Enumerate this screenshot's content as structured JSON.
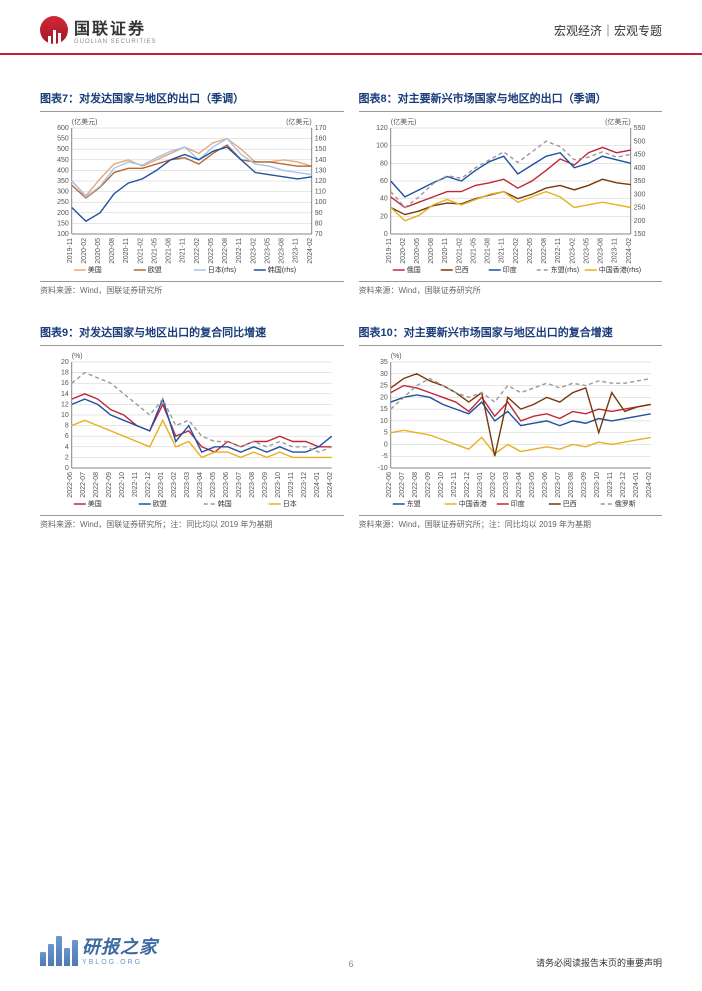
{
  "header": {
    "logo_cn": "国联证券",
    "logo_en": "GUOLIAN SECURITIES",
    "right_text": "宏观经济｜宏观专题"
  },
  "charts": [
    {
      "id": "chart7",
      "title": "图表7：对发达国家与地区的出口（季调）",
      "left_label": "(亿美元)",
      "right_label": "(亿美元)",
      "source": "资料来源：Wind，国联证券研究所",
      "left_axis": {
        "min": 100,
        "max": 600,
        "step": 50
      },
      "right_axis": {
        "min": 70,
        "max": 170,
        "step": 10
      },
      "x_ticks": [
        "2019-11",
        "2020-02",
        "2020-05",
        "2020-08",
        "2020-11",
        "2021-02",
        "2021-05",
        "2021-08",
        "2021-11",
        "2022-02",
        "2022-05",
        "2022-08",
        "2022-11",
        "2023-02",
        "2023-05",
        "2023-08",
        "2023-11",
        "2024-02"
      ],
      "series": [
        {
          "name": "美国",
          "color": "#e8a878",
          "dash": "",
          "axis": "left",
          "data": [
            350,
            280,
            360,
            430,
            450,
            420,
            450,
            480,
            510,
            480,
            530,
            550,
            500,
            440,
            440,
            450,
            440,
            420
          ]
        },
        {
          "name": "欧盟",
          "color": "#b56838",
          "dash": "",
          "axis": "left",
          "data": [
            330,
            270,
            320,
            390,
            410,
            410,
            430,
            450,
            460,
            430,
            480,
            520,
            450,
            440,
            440,
            430,
            420,
            420
          ]
        },
        {
          "name": "日本(rhs)",
          "color": "#a8c4e8",
          "dash": "",
          "axis": "right",
          "data": [
            120,
            105,
            115,
            132,
            138,
            135,
            142,
            148,
            152,
            140,
            152,
            160,
            145,
            136,
            134,
            130,
            128,
            126
          ]
        },
        {
          "name": "韩国(rhs)",
          "color": "#2050a0",
          "dash": "",
          "axis": "right",
          "data": [
            95,
            82,
            90,
            108,
            118,
            122,
            130,
            140,
            145,
            140,
            148,
            152,
            140,
            128,
            126,
            124,
            122,
            124
          ]
        }
      ]
    },
    {
      "id": "chart8",
      "title": "图表8：对主要新兴市场国家与地区的出口（季调）",
      "left_label": "(亿美元)",
      "right_label": "(亿美元)",
      "source": "资料来源：Wind，国联证券研究所",
      "left_axis": {
        "min": 0,
        "max": 120,
        "step": 20
      },
      "right_axis": {
        "min": 150,
        "max": 550,
        "step": 50
      },
      "x_ticks": [
        "2019-11",
        "2020-02",
        "2020-05",
        "2020-08",
        "2020-11",
        "2021-02",
        "2021-05",
        "2021-08",
        "2021-11",
        "2022-02",
        "2022-05",
        "2022-08",
        "2022-11",
        "2023-02",
        "2023-05",
        "2023-08",
        "2023-11",
        "2024-02"
      ],
      "series": [
        {
          "name": "俄国",
          "color": "#c02838",
          "dash": "",
          "axis": "left",
          "data": [
            42,
            30,
            36,
            42,
            48,
            48,
            55,
            58,
            62,
            52,
            60,
            72,
            85,
            78,
            92,
            98,
            92,
            95
          ]
        },
        {
          "name": "巴西",
          "color": "#78380a",
          "dash": "",
          "axis": "left",
          "data": [
            30,
            22,
            26,
            32,
            35,
            34,
            40,
            44,
            48,
            40,
            45,
            52,
            55,
            50,
            55,
            62,
            58,
            56
          ]
        },
        {
          "name": "印度",
          "color": "#2050a0",
          "dash": "",
          "axis": "left",
          "data": [
            60,
            42,
            50,
            58,
            65,
            60,
            72,
            82,
            88,
            68,
            78,
            88,
            92,
            75,
            80,
            88,
            84,
            80
          ]
        },
        {
          "name": "东盟(rhs)",
          "color": "#999",
          "dash": "4,3",
          "axis": "right",
          "data": [
            310,
            250,
            290,
            340,
            370,
            360,
            400,
            430,
            460,
            420,
            460,
            500,
            480,
            430,
            440,
            460,
            440,
            450
          ]
        },
        {
          "name": "中国香港(rhs)",
          "color": "#e8b020",
          "dash": "",
          "axis": "right",
          "data": [
            250,
            200,
            220,
            260,
            280,
            260,
            280,
            300,
            310,
            270,
            290,
            310,
            290,
            250,
            260,
            270,
            260,
            250
          ]
        }
      ]
    },
    {
      "id": "chart9",
      "title": "图表9：对发达国家与地区出口的复合同比增速",
      "left_label": "(%)",
      "right_label": "",
      "source": "资料来源：Wind，国联证券研究所；注：同比均以 2019 年为基期",
      "left_axis": {
        "min": 0,
        "max": 20,
        "step": 2
      },
      "right_axis": null,
      "x_ticks": [
        "2022-06",
        "2022-07",
        "2022-08",
        "2022-09",
        "2022-10",
        "2022-11",
        "2022-12",
        "2023-01",
        "2023-02",
        "2023-03",
        "2023-04",
        "2023-05",
        "2023-06",
        "2023-07",
        "2023-08",
        "2023-09",
        "2023-10",
        "2023-11",
        "2023-12",
        "2024-01",
        "2024-02"
      ],
      "series": [
        {
          "name": "美国",
          "color": "#c02838",
          "dash": "",
          "axis": "left",
          "data": [
            13,
            14,
            13,
            11,
            10,
            8,
            7,
            12,
            6,
            7,
            4,
            3,
            5,
            4,
            5,
            5,
            6,
            5,
            5,
            4,
            4
          ]
        },
        {
          "name": "欧盟",
          "color": "#2050a0",
          "dash": "",
          "axis": "left",
          "data": [
            12,
            13,
            12,
            10,
            9,
            8,
            7,
            13,
            5,
            8,
            3,
            4,
            4,
            3,
            4,
            3,
            4,
            3,
            3,
            4,
            6
          ]
        },
        {
          "name": "韩国",
          "color": "#999",
          "dash": "4,3",
          "axis": "left",
          "data": [
            16,
            18,
            17,
            16,
            14,
            12,
            10,
            13,
            8,
            9,
            6,
            5,
            5,
            4,
            5,
            4,
            5,
            4,
            4,
            3,
            4
          ]
        },
        {
          "name": "日本",
          "color": "#e8b020",
          "dash": "",
          "axis": "left",
          "data": [
            8,
            9,
            8,
            7,
            6,
            5,
            4,
            9,
            4,
            5,
            2,
            3,
            3,
            2,
            3,
            2,
            3,
            2,
            2,
            2,
            2
          ]
        }
      ]
    },
    {
      "id": "chart10",
      "title": "图表10：对主要新兴市场国家与地区出口的复合增速",
      "left_label": "(%)",
      "right_label": "",
      "source": "资料来源：Wind，国联证券研究所；注：同比均以 2019 年为基期",
      "left_axis": {
        "min": -10,
        "max": 35,
        "step": 5
      },
      "right_axis": null,
      "x_ticks": [
        "2022-06",
        "2022-07",
        "2022-08",
        "2022-09",
        "2022-10",
        "2022-11",
        "2022-12",
        "2023-01",
        "2023-02",
        "2023-03",
        "2023-04",
        "2023-05",
        "2023-06",
        "2023-07",
        "2023-08",
        "2023-09",
        "2023-10",
        "2023-11",
        "2023-12",
        "2024-01",
        "2024-02"
      ],
      "series": [
        {
          "name": "东盟",
          "color": "#2050a0",
          "dash": "",
          "axis": "left",
          "data": [
            18,
            20,
            21,
            20,
            17,
            15,
            13,
            18,
            10,
            14,
            8,
            9,
            10,
            8,
            10,
            9,
            11,
            10,
            11,
            12,
            13
          ]
        },
        {
          "name": "中国香港",
          "color": "#e8b020",
          "dash": "",
          "axis": "left",
          "data": [
            5,
            6,
            5,
            4,
            2,
            0,
            -2,
            3,
            -4,
            0,
            -3,
            -2,
            -1,
            -2,
            0,
            -1,
            1,
            0,
            1,
            2,
            3
          ]
        },
        {
          "name": "印度",
          "color": "#c02838",
          "dash": "",
          "axis": "left",
          "data": [
            22,
            25,
            24,
            22,
            20,
            18,
            14,
            20,
            12,
            18,
            10,
            12,
            13,
            11,
            14,
            13,
            15,
            14,
            15,
            16,
            17
          ]
        },
        {
          "name": "巴西",
          "color": "#78380a",
          "dash": "",
          "axis": "left",
          "data": [
            24,
            28,
            30,
            27,
            25,
            22,
            18,
            22,
            -5,
            20,
            15,
            17,
            20,
            18,
            22,
            24,
            5,
            22,
            14,
            16,
            17
          ]
        },
        {
          "name": "俄罗斯",
          "color": "#999",
          "dash": "4,3",
          "axis": "left",
          "data": [
            15,
            20,
            25,
            28,
            25,
            22,
            20,
            22,
            18,
            25,
            22,
            24,
            26,
            24,
            26,
            25,
            27,
            26,
            26,
            27,
            28
          ]
        }
      ]
    }
  ],
  "watermark": "研报之家",
  "watermark_url": "YBLOG.ORG",
  "footer": "请务必阅读报告末页的重要声明",
  "page_num": "6"
}
